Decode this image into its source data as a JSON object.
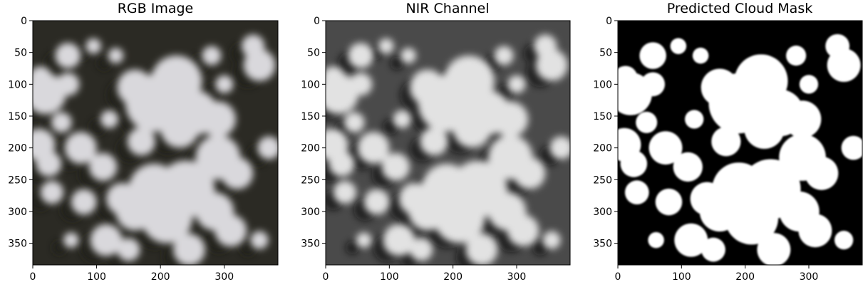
{
  "chart_data": [
    {
      "type": "image",
      "title": "RGB Image",
      "xlim": [
        0,
        384
      ],
      "ylim": [
        384,
        0
      ],
      "xticks": [
        0,
        100,
        200,
        300
      ],
      "yticks": [
        0,
        50,
        100,
        150,
        200,
        250,
        300,
        350
      ],
      "colors": {
        "background": "#2b2a24",
        "cloud": "#d9d8dc",
        "shade": "#1c1b17"
      }
    },
    {
      "type": "image",
      "title": "NIR Channel",
      "xlim": [
        0,
        384
      ],
      "ylim": [
        384,
        0
      ],
      "xticks": [
        0,
        100,
        200,
        300
      ],
      "yticks": [
        0,
        50,
        100,
        150,
        200,
        250,
        300,
        350
      ],
      "colors": {
        "background": "#4a4a4a",
        "cloud": "#e2e2e2",
        "shade": "#0a0a0a"
      }
    },
    {
      "type": "image",
      "title": "Predicted Cloud Mask",
      "xlim": [
        0,
        384
      ],
      "ylim": [
        384,
        0
      ],
      "xticks": [
        0,
        100,
        200,
        300
      ],
      "yticks": [
        0,
        50,
        100,
        150,
        200,
        250,
        300,
        350
      ],
      "colors": {
        "background": "#000000",
        "cloud": "#ffffff",
        "shade": "#000000"
      }
    }
  ]
}
